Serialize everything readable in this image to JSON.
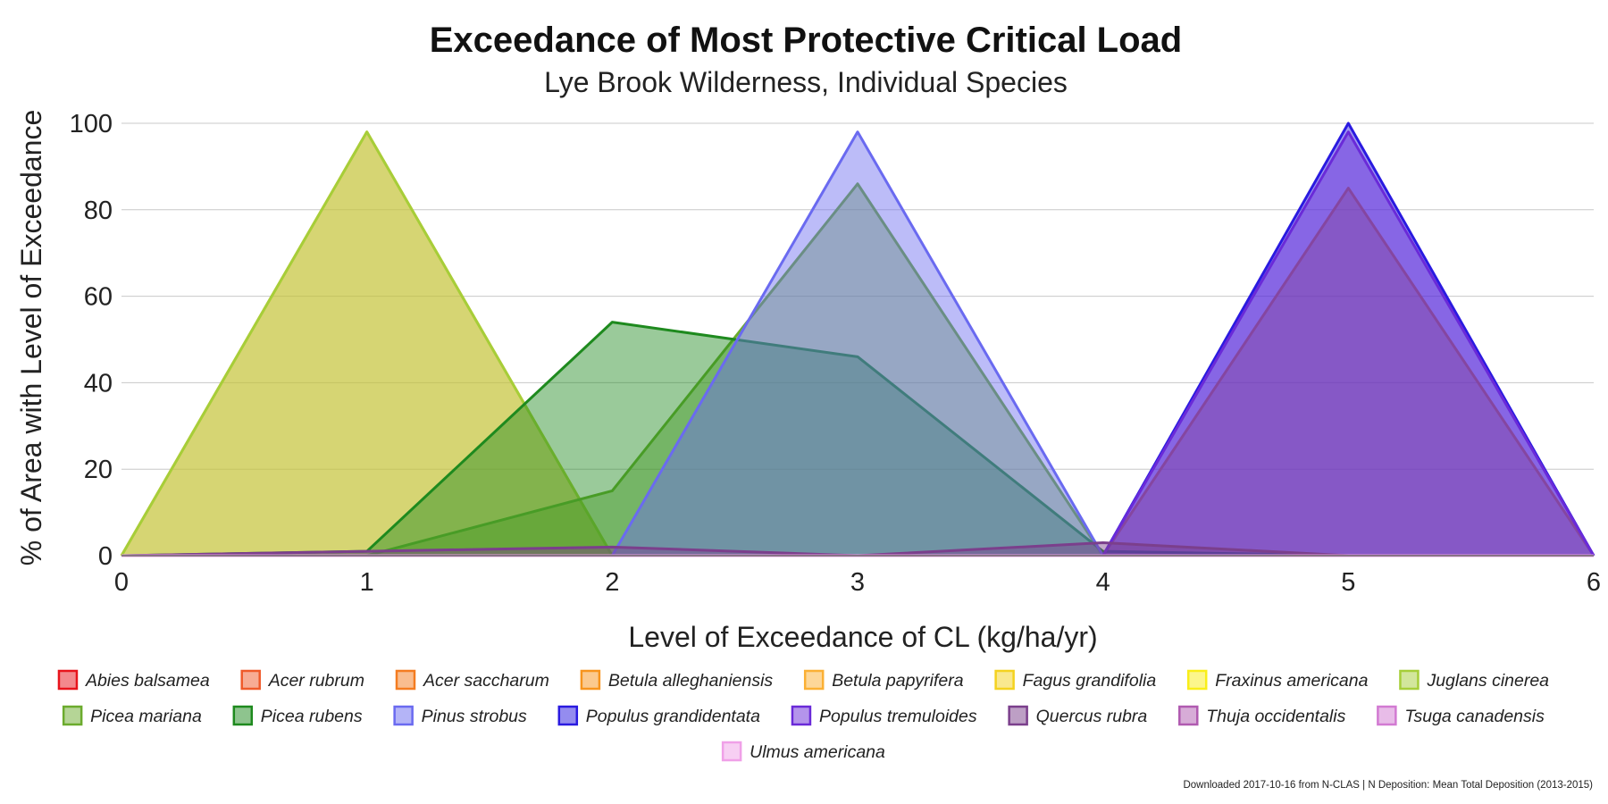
{
  "chart_data": {
    "type": "area",
    "title": "Exceedance of Most Protective Critical Load",
    "subtitle": "Lye Brook Wilderness, Individual Species",
    "xlabel": "Level of Exceedance of CL (kg/ha/yr)",
    "ylabel": "% of Area with Level of Exceedance",
    "x": [
      0,
      1,
      2,
      3,
      4,
      5,
      6
    ],
    "xlim": [
      0,
      6
    ],
    "ylim": [
      0,
      100
    ],
    "yticks": [
      0,
      20,
      40,
      60,
      80,
      100
    ],
    "grid": true,
    "legend_position": "bottom",
    "series": [
      {
        "name": "Abies balsamea",
        "color": "#e8141c",
        "values": [
          0,
          0,
          0,
          0,
          0,
          0,
          0
        ]
      },
      {
        "name": "Acer rubrum",
        "color": "#ef5a2a",
        "values": [
          0,
          0,
          0,
          0,
          0,
          0,
          0
        ]
      },
      {
        "name": "Acer saccharum",
        "color": "#f47c20",
        "values": [
          0,
          0,
          0,
          0,
          0,
          0,
          0
        ]
      },
      {
        "name": "Betula alleghaniensis",
        "color": "#f7941d",
        "values": [
          0,
          0,
          0,
          0,
          0,
          85,
          0
        ]
      },
      {
        "name": "Betula papyrifera",
        "color": "#fbb034",
        "values": [
          0,
          98,
          0,
          0,
          0,
          0,
          0
        ]
      },
      {
        "name": "Fagus grandifolia",
        "color": "#f4d21f",
        "values": [
          0,
          0,
          0,
          0,
          0,
          0,
          0
        ]
      },
      {
        "name": "Fraxinus americana",
        "color": "#f9ee1a",
        "values": [
          0,
          0,
          0,
          0,
          0,
          0,
          0
        ]
      },
      {
        "name": "Juglans cinerea",
        "color": "#a6ce39",
        "values": [
          0,
          98,
          0,
          0,
          0,
          0,
          0
        ]
      },
      {
        "name": "Picea mariana",
        "color": "#6bab2d",
        "values": [
          0,
          0,
          15,
          86,
          0,
          0,
          0
        ]
      },
      {
        "name": "Picea rubens",
        "color": "#1e8a1e",
        "values": [
          0,
          1,
          54,
          46,
          1,
          0,
          0
        ]
      },
      {
        "name": "Pinus strobus",
        "color": "#6a6af0",
        "values": [
          0,
          0,
          0,
          98,
          0,
          0,
          0
        ]
      },
      {
        "name": "Populus grandidentata",
        "color": "#2a1ae0",
        "values": [
          0,
          0,
          0,
          0,
          0,
          100,
          0
        ]
      },
      {
        "name": "Populus tremuloides",
        "color": "#6a2ad8",
        "values": [
          0,
          0,
          0,
          0,
          0,
          98,
          0
        ]
      },
      {
        "name": "Quercus rubra",
        "color": "#7b3f8c",
        "values": [
          0,
          1,
          2,
          0,
          3,
          0,
          0
        ]
      },
      {
        "name": "Thuja occidentalis",
        "color": "#b05ab0",
        "values": [
          0,
          0,
          0,
          0,
          0,
          0,
          0
        ]
      },
      {
        "name": "Tsuga canadensis",
        "color": "#d27ad2",
        "values": [
          0,
          0,
          0,
          0,
          0,
          0,
          0
        ]
      },
      {
        "name": "Ulmus americana",
        "color": "#f0a0e8",
        "values": [
          0,
          0,
          0,
          0,
          0,
          0,
          0
        ]
      }
    ],
    "footer": "Downloaded 2017-10-16 from N-CLAS     |     N Deposition: Mean Total Deposition (2013-2015)"
  }
}
